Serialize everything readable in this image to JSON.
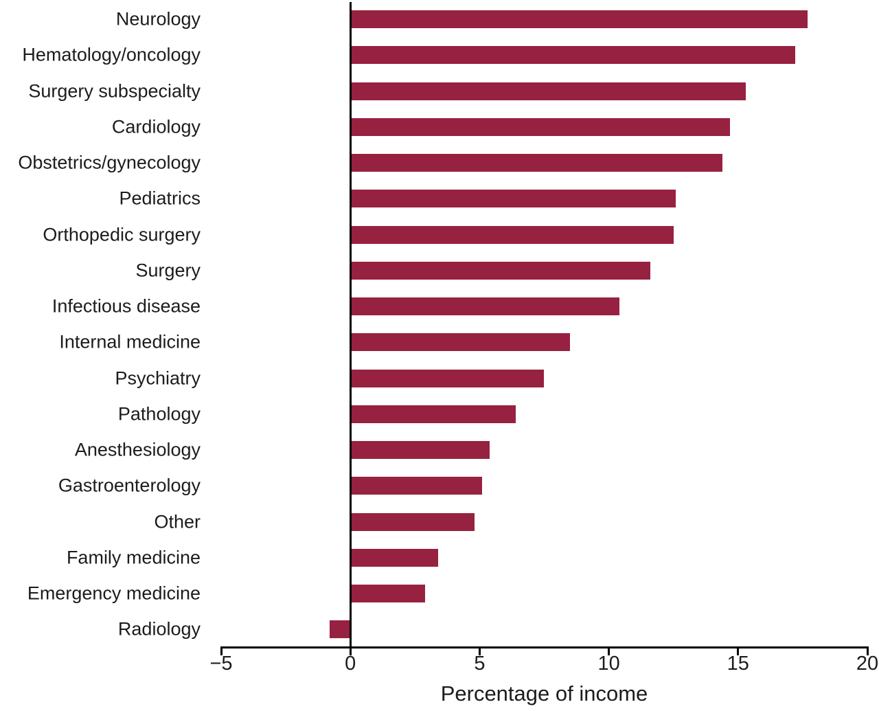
{
  "chart_data": {
    "type": "bar",
    "orientation": "horizontal",
    "title": "",
    "xlabel": "Percentage of income",
    "ylabel": "",
    "categories": [
      "Neurology",
      "Hematology/oncology",
      "Surgery subspecialty",
      "Cardiology",
      "Obstetrics/gynecology",
      "Pediatrics",
      "Orthopedic surgery",
      "Surgery",
      "Infectious disease",
      "Internal medicine",
      "Psychiatry",
      "Pathology",
      "Anesthesiology",
      "Gastroenterology",
      "Other",
      "Family medicine",
      "Emergency medicine",
      "Radiology"
    ],
    "values": [
      17.7,
      17.2,
      15.3,
      14.7,
      14.4,
      12.6,
      12.5,
      11.6,
      10.4,
      8.5,
      7.5,
      6.4,
      5.4,
      5.1,
      4.8,
      3.4,
      2.9,
      -0.8
    ],
    "xlim": [
      -5,
      20
    ],
    "xticks": [
      -5,
      0,
      5,
      10,
      15,
      20
    ],
    "xtick_labels": [
      "−5",
      "0",
      "5",
      "10",
      "15",
      "20"
    ],
    "bar_color": "#972140",
    "axis_color": "#000000",
    "text_color": "#1c1c1c",
    "grid": false,
    "legend_position": "none"
  }
}
